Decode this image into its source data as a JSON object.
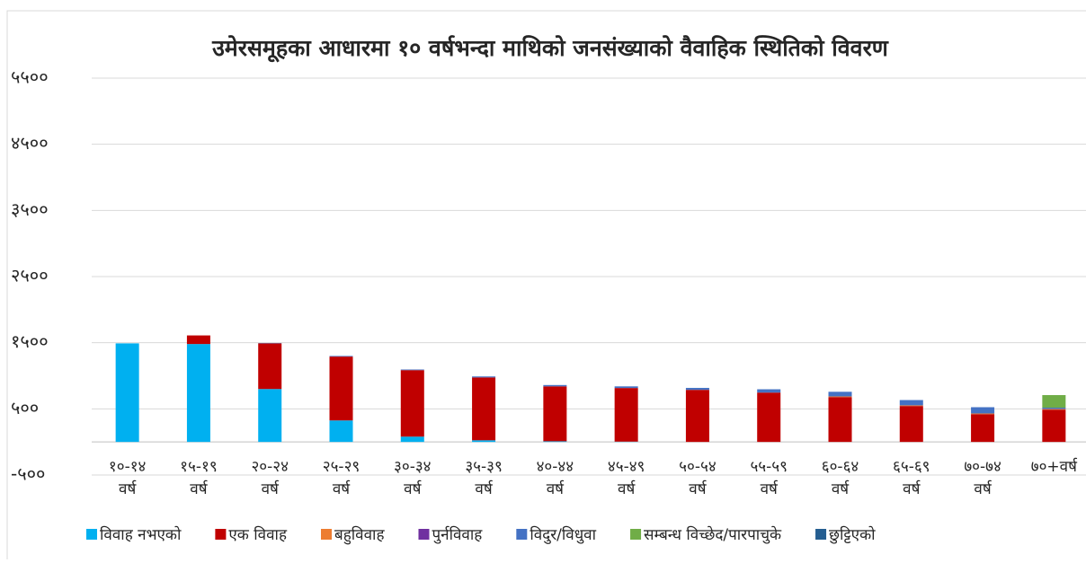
{
  "chart_data": {
    "type": "stacked_bar",
    "title": "उमेरसमूहका आधारमा १० वर्षभन्दा माथिको जनसंख्याको वैवाहिक स्थितिको विवरण",
    "categories": [
      [
        "१०-१४",
        "वर्ष"
      ],
      [
        "१५-१९",
        "वर्ष"
      ],
      [
        "२०-२४",
        "वर्ष"
      ],
      [
        "२५-२९",
        "वर्ष"
      ],
      [
        "३०-३४",
        "वर्ष"
      ],
      [
        "३५-३९",
        "वर्ष"
      ],
      [
        "४०-४४",
        "वर्ष"
      ],
      [
        "४५-४९",
        "वर्ष"
      ],
      [
        "५०-५४",
        "वर्ष"
      ],
      [
        "५५-५९",
        "वर्ष"
      ],
      [
        "६०-६४",
        "वर्ष"
      ],
      [
        "६५-६९",
        "वर्ष"
      ],
      [
        "७०-७४",
        "वर्ष"
      ],
      [
        "७०+वर्ष"
      ]
    ],
    "series": [
      {
        "name": "विवाह नभएको",
        "color": "#00b0f0",
        "values": [
          1490,
          1480,
          800,
          325,
          80,
          25,
          10,
          5,
          0,
          0,
          0,
          0,
          0,
          0
        ]
      },
      {
        "name": "एक विवाह",
        "color": "#c00000",
        "values": [
          0,
          130,
          690,
          965,
          1005,
          950,
          830,
          810,
          787,
          746,
          678,
          543,
          420,
          488
        ]
      },
      {
        "name": "बहुविवाह",
        "color": "#ed7d31",
        "values": [
          0,
          0,
          0,
          0,
          0,
          0,
          0,
          0,
          0,
          0,
          10,
          10,
          10,
          10
        ]
      },
      {
        "name": "पुर्नविवाह",
        "color": "#7030a0",
        "values": [
          0,
          0,
          0,
          0,
          0,
          0,
          0,
          0,
          0,
          0,
          0,
          0,
          0,
          0
        ]
      },
      {
        "name": "विदुर/विधुवा",
        "color": "#4472c4",
        "values": [
          0,
          0,
          5,
          10,
          10,
          15,
          20,
          25,
          30,
          50,
          70,
          80,
          95,
          20
        ]
      },
      {
        "name": "सम्बन्ध विच्छेद/पारपाचुके",
        "color": "#70ad47",
        "values": [
          0,
          0,
          0,
          0,
          0,
          0,
          0,
          0,
          0,
          0,
          0,
          0,
          0,
          190
        ]
      },
      {
        "name": "छुट्टिएको",
        "color": "#255e91",
        "values": [
          0,
          0,
          0,
          0,
          0,
          0,
          0,
          0,
          0,
          0,
          0,
          0,
          0,
          0
        ]
      }
    ],
    "ylim": [
      -500,
      5500
    ],
    "yticks": [
      {
        "value": -500,
        "label": "-५००"
      },
      {
        "value": 500,
        "label": "५००"
      },
      {
        "value": 1500,
        "label": "१५००"
      },
      {
        "value": 2500,
        "label": "२५००"
      },
      {
        "value": 3500,
        "label": "३५००"
      },
      {
        "value": 4500,
        "label": "४५००"
      },
      {
        "value": 5500,
        "label": "५५००"
      }
    ],
    "grid": true,
    "legend": "bottom"
  }
}
